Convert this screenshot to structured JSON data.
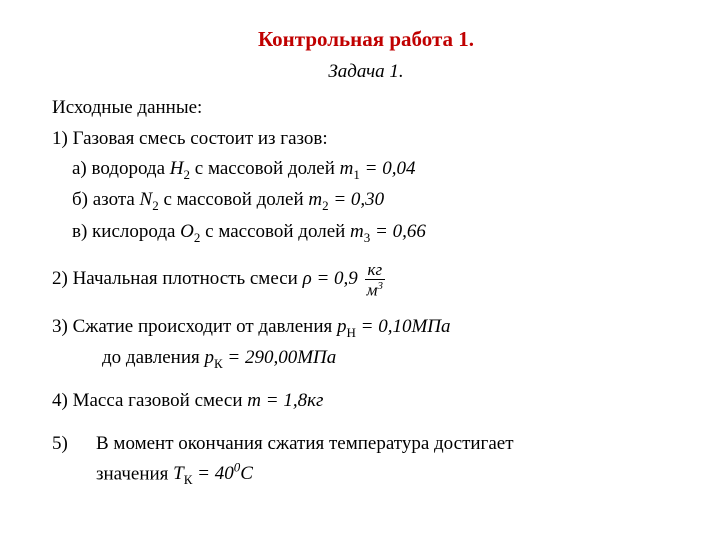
{
  "title": "Контрольная работа 1.",
  "subtitle": "Задача 1.",
  "heading": "Исходные данные:",
  "item1": "1)  Газовая смесь состоит из газов:",
  "item1a_pre": "а) водорода  ",
  "item1a_mid": "  с массовой долей  ",
  "item1b_pre": "б) азота    ",
  "item1b_mid": "  с массовой долей  ",
  "item1c_pre": "в) кислорода ",
  "item1c_mid": "  с массовой долей  ",
  "f_h2_sym": "H",
  "f_h2_sub": "2",
  "f_n2_sym": "N",
  "f_n2_sub": "2",
  "f_o2_sym": "O",
  "f_o2_sub": "2",
  "m1_sym": "m",
  "m1_sub": "1",
  "m1_eq": " = 0,04",
  "m2_sym": "m",
  "m2_sub": "2",
  "m2_eq": " = 0,30",
  "m3_sym": "m",
  "m3_sub": "3",
  "m3_eq": " = 0,66",
  "item2": "2)  Начальная плотность смеси  ",
  "rho_eq": "ρ = 0,9",
  "rho_num": "кг",
  "rho_den_base": "м",
  "rho_den_sup": "3",
  "item3": "3)  Сжатие происходит от давления ",
  "item3b": "до давления ",
  "ph_sym": "p",
  "ph_sub": "Н",
  "ph_eq": " = 0,10МПа",
  "pk_sym": "p",
  "pk_sub": "К",
  "pk_eq": " = 290,00МПа",
  "item4": "4)  Масса газовой смеси ",
  "mass_sym": "m",
  "mass_eq": " = 1,8кг",
  "item5_num": "5)",
  "item5_txt_a": "В момент окончания сжатия температура достигает",
  "item5_txt_b": "значения  ",
  "tk_sym": "T",
  "tk_sub": "К",
  "tk_eq_a": " = 40",
  "tk_sup": "0",
  "tk_eq_b": "С",
  "colors": {
    "title": "#c00000",
    "text": "#000000",
    "bg": "#ffffff"
  },
  "fontsizes": {
    "body": 19,
    "title": 21,
    "sub": 13
  }
}
